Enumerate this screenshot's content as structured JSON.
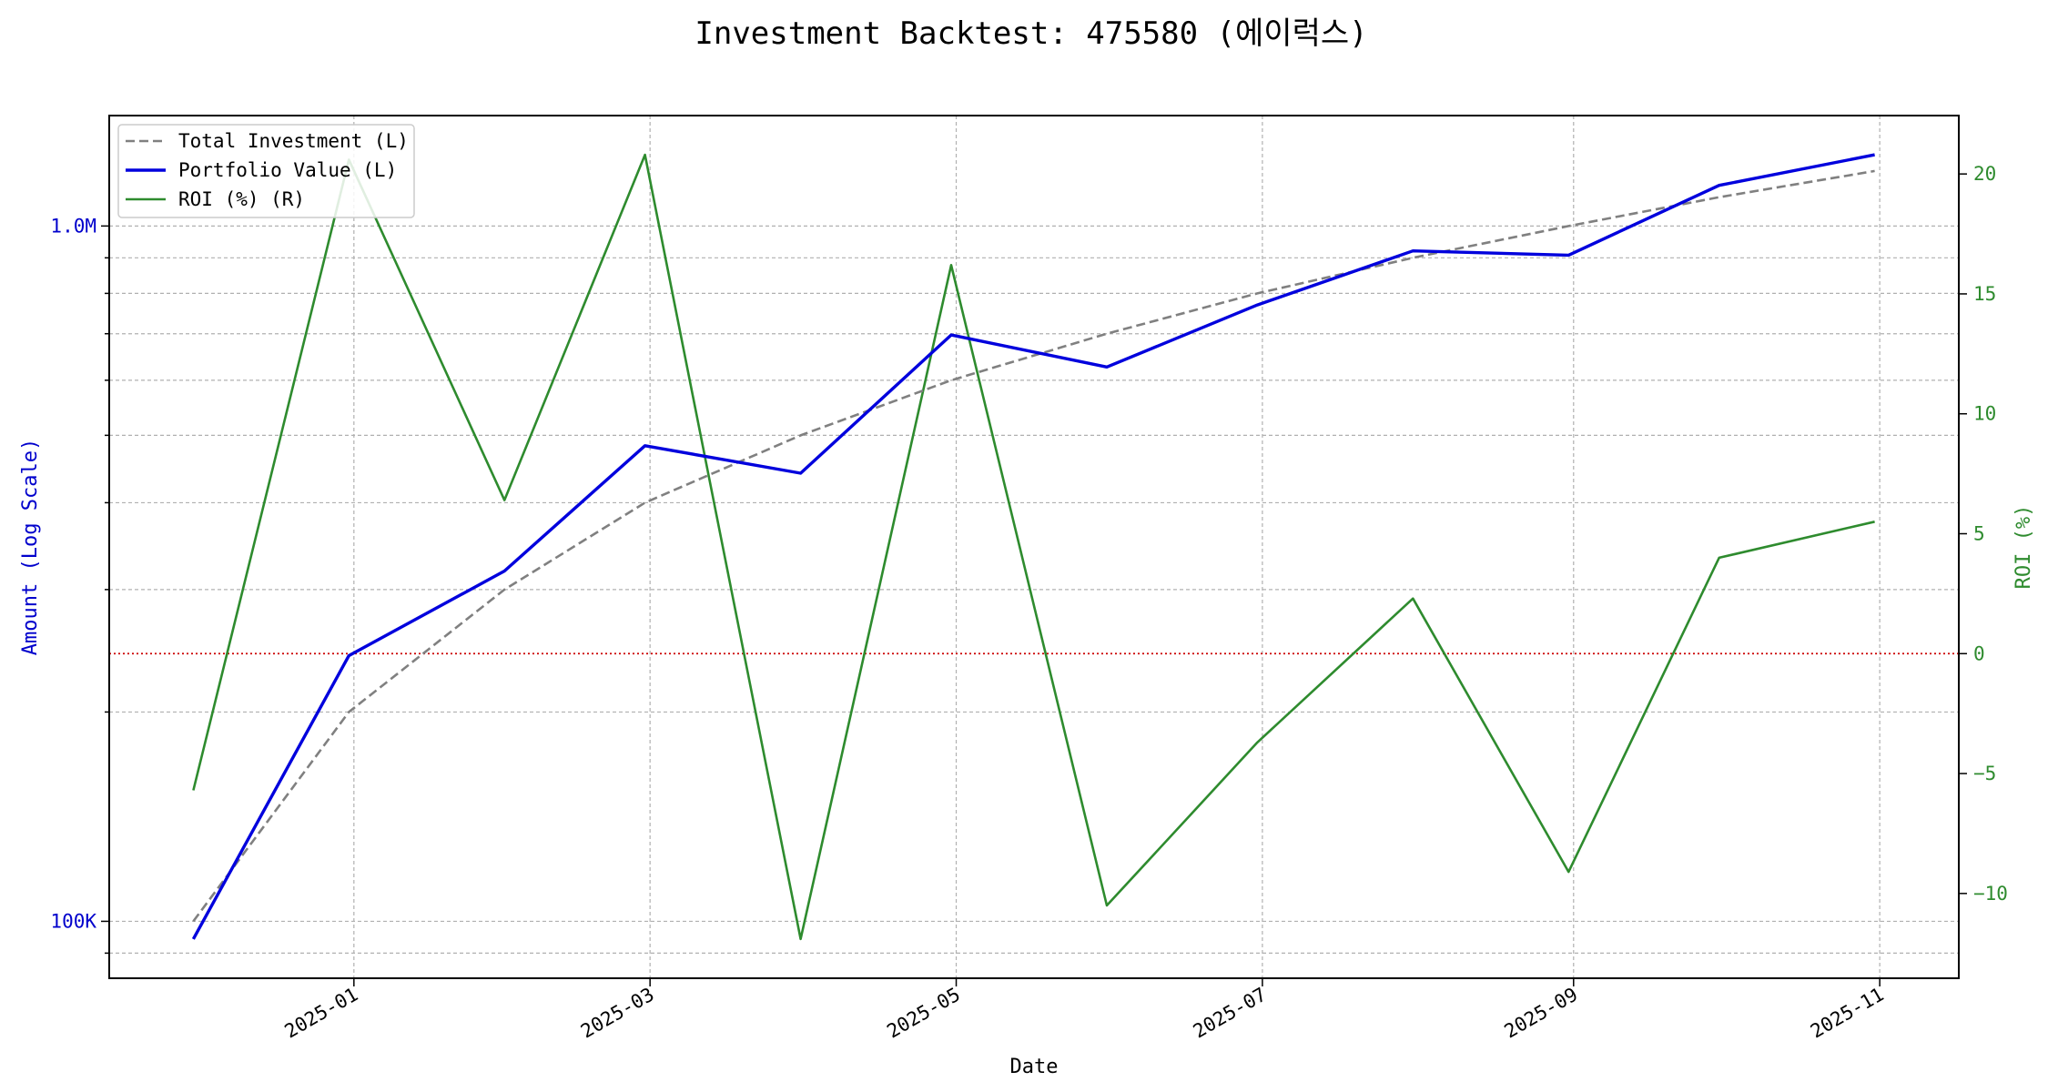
{
  "chart_data": {
    "type": "line",
    "title": "Investment Backtest: 475580 (에이럭스)",
    "xlabel": "Date",
    "ylabel_left": "Amount (Log Scale)",
    "ylabel_right": "ROI (%)",
    "y_left_scale": "log",
    "y_left_ticks": [
      {
        "value": 100000,
        "label": "100K"
      },
      {
        "value": 1000000,
        "label": "1.0M"
      }
    ],
    "y_right_ticks": [
      {
        "value": -10,
        "label": "−10"
      },
      {
        "value": -5,
        "label": "−5"
      },
      {
        "value": 0,
        "label": "0"
      },
      {
        "value": 5,
        "label": "5"
      },
      {
        "value": 10,
        "label": "10"
      },
      {
        "value": 15,
        "label": "15"
      },
      {
        "value": 20,
        "label": "20"
      }
    ],
    "x_ticks": [
      "2025-01",
      "2025-03",
      "2025-05",
      "2025-07",
      "2025-09",
      "2025-11"
    ],
    "x": [
      "2024-11-30",
      "2024-12-31",
      "2025-01-31",
      "2025-02-28",
      "2025-03-31",
      "2025-04-30",
      "2025-05-31",
      "2025-06-30",
      "2025-07-31",
      "2025-08-31",
      "2025-09-30",
      "2025-10-31"
    ],
    "series": [
      {
        "name": "Total Investment (L)",
        "axis": "left",
        "style": "dashed",
        "color": "#808080",
        "values": [
          100000,
          200000,
          300000,
          400000,
          500000,
          600000,
          700000,
          800000,
          900000,
          1000000,
          1100000,
          1200000
        ]
      },
      {
        "name": "Portfolio Value (L)",
        "axis": "left",
        "style": "solid",
        "color": "#0000dd",
        "values": [
          94300,
          241000,
          319000,
          483000,
          441000,
          697000,
          627000,
          770000,
          921000,
          908000,
          1144000,
          1266000
        ]
      },
      {
        "name": "ROI (%) (R)",
        "axis": "right",
        "style": "solid",
        "color": "#2e8b2e",
        "values": [
          -5.7,
          20.6,
          6.4,
          20.8,
          -11.9,
          16.2,
          -10.5,
          -3.7,
          2.3,
          -9.1,
          4.0,
          5.5
        ]
      }
    ],
    "reference_line": {
      "axis": "right",
      "value": 0,
      "color": "#cc0000",
      "style": "dotted"
    },
    "legend_position": "top-left",
    "grid": true
  }
}
